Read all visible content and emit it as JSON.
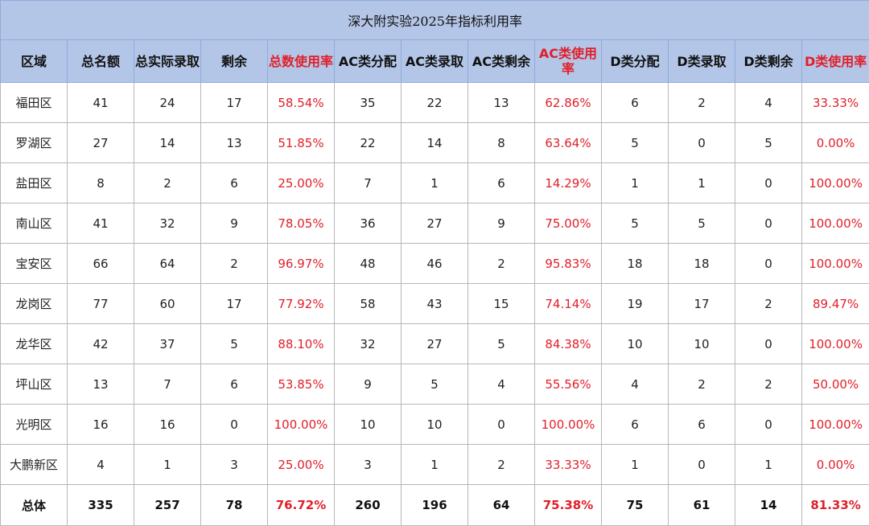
{
  "title": "深大附实验2025年指标利用率",
  "headers": [
    "区域",
    "总名额",
    "总实际录取",
    "剩余",
    "总数使用率",
    "AC类分配",
    "AC类录取",
    "AC类剩余",
    "AC类使用率",
    "D类分配",
    "D类录取",
    "D类剩余",
    "D类使用率"
  ],
  "rows": [
    [
      "福田区",
      "41",
      "24",
      "17",
      "58.54%",
      "35",
      "22",
      "13",
      "62.86%",
      "6",
      "2",
      "4",
      "33.33%"
    ],
    [
      "罗湖区",
      "27",
      "14",
      "13",
      "51.85%",
      "22",
      "14",
      "8",
      "63.64%",
      "5",
      "0",
      "5",
      "0.00%"
    ],
    [
      "盐田区",
      "8",
      "2",
      "6",
      "25.00%",
      "7",
      "1",
      "6",
      "14.29%",
      "1",
      "1",
      "0",
      "100.00%"
    ],
    [
      "南山区",
      "41",
      "32",
      "9",
      "78.05%",
      "36",
      "27",
      "9",
      "75.00%",
      "5",
      "5",
      "0",
      "100.00%"
    ],
    [
      "宝安区",
      "66",
      "64",
      "2",
      "96.97%",
      "48",
      "46",
      "2",
      "95.83%",
      "18",
      "18",
      "0",
      "100.00%"
    ],
    [
      "龙岗区",
      "77",
      "60",
      "17",
      "77.92%",
      "58",
      "43",
      "15",
      "74.14%",
      "19",
      "17",
      "2",
      "89.47%"
    ],
    [
      "龙华区",
      "42",
      "37",
      "5",
      "88.10%",
      "32",
      "27",
      "5",
      "84.38%",
      "10",
      "10",
      "0",
      "100.00%"
    ],
    [
      "坪山区",
      "13",
      "7",
      "6",
      "53.85%",
      "9",
      "5",
      "4",
      "55.56%",
      "4",
      "2",
      "2",
      "50.00%"
    ],
    [
      "光明区",
      "16",
      "16",
      "0",
      "100.00%",
      "10",
      "10",
      "0",
      "100.00%",
      "6",
      "6",
      "0",
      "100.00%"
    ],
    [
      "大鹏新区",
      "4",
      "1",
      "3",
      "25.00%",
      "3",
      "1",
      "2",
      "33.33%",
      "1",
      "0",
      "1",
      "0.00%"
    ]
  ],
  "total": [
    "总体",
    "335",
    "257",
    "78",
    "76.72%",
    "260",
    "196",
    "64",
    "75.38%",
    "75",
    "61",
    "14",
    "81.33%"
  ],
  "colors": {
    "header_bg": "#b4c6e7",
    "accent_red": "#e0202a",
    "grid": "#b7b7b7"
  }
}
